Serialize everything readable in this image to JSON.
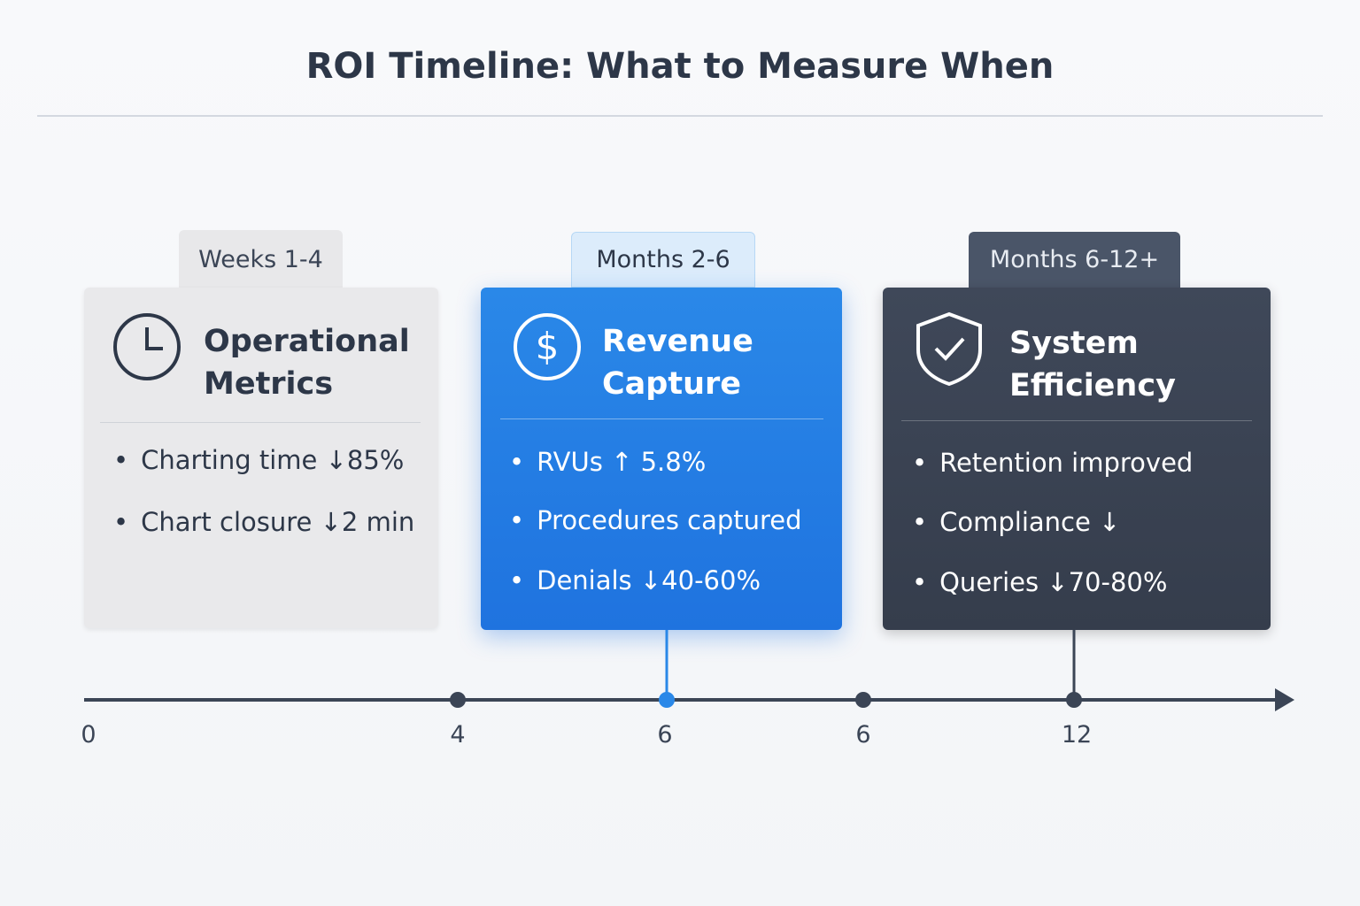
{
  "title": "ROI Timeline: What to Measure When",
  "phases": [
    {
      "tab": "Weeks 1-4",
      "heading": "Operational Metrics",
      "items": [
        "Charting time ↓85%",
        "Chart closure ↓2 min"
      ]
    },
    {
      "tab": "Months 2-6",
      "heading": "Revenue Capture",
      "items": [
        "RVUs ↑ 5.8%",
        "Procedures captured",
        "Denials ↓40-60%"
      ]
    },
    {
      "tab": "Months 6-12+",
      "heading": "System Efficiency",
      "items": [
        "Retention improved",
        "Compliance ↓",
        "Queries ↓70-80%"
      ]
    }
  ],
  "timeline": {
    "labels": [
      "0",
      "4",
      "6",
      "6",
      "12"
    ]
  }
}
